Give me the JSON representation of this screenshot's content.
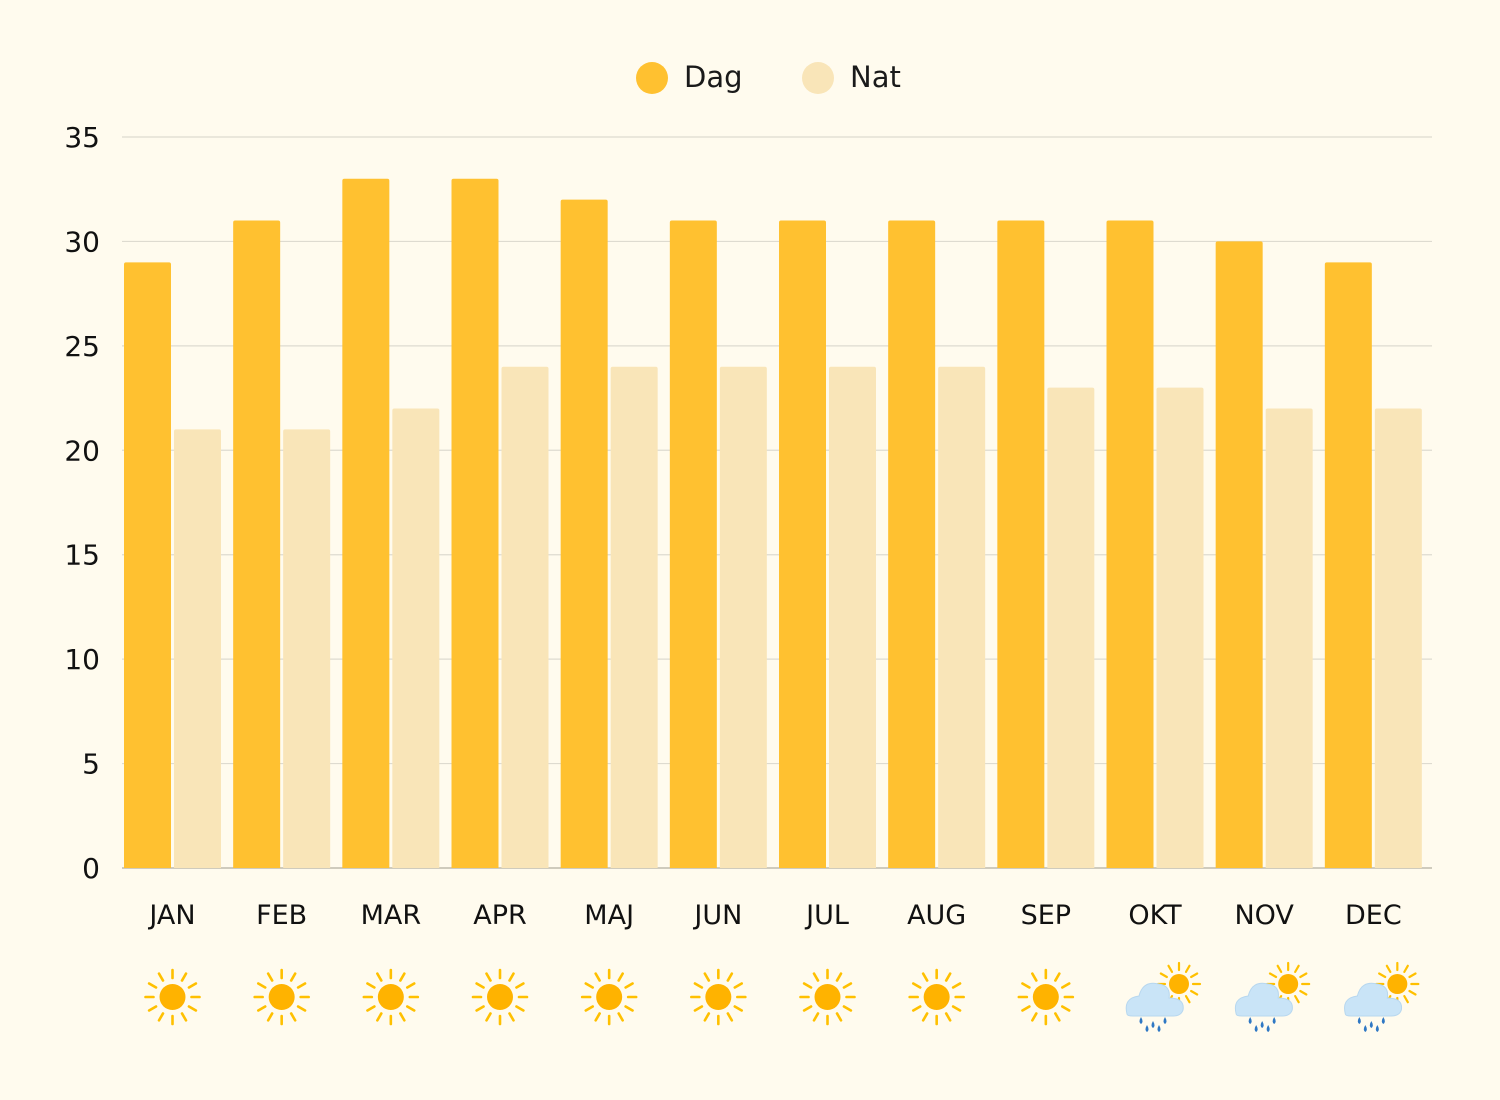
{
  "chart_data": {
    "type": "bar",
    "categories": [
      "JAN",
      "FEB",
      "MAR",
      "APR",
      "MAJ",
      "JUN",
      "JUL",
      "AUG",
      "SEP",
      "OKT",
      "NOV",
      "DEC"
    ],
    "series": [
      {
        "name": "Dag",
        "color": "#ffc130",
        "values": [
          29,
          31,
          33,
          33,
          32,
          31,
          31,
          31,
          31,
          31,
          30,
          29
        ]
      },
      {
        "name": "Nat",
        "color": "#f9e5b8",
        "values": [
          21,
          21,
          22,
          24,
          24,
          24,
          24,
          24,
          23,
          23,
          22,
          22
        ]
      }
    ],
    "ylim": [
      0,
      35
    ],
    "yticks": [
      0,
      5,
      10,
      15,
      20,
      25,
      30,
      35
    ],
    "grid": true,
    "legend_position": "top-center",
    "weather_icons": [
      "sun-icon",
      "sun-icon",
      "sun-icon",
      "sun-icon",
      "sun-icon",
      "sun-icon",
      "sun-icon",
      "sun-icon",
      "sun-icon",
      "sun-rain-cloud-icon",
      "sun-rain-cloud-icon",
      "sun-rain-cloud-icon"
    ]
  }
}
